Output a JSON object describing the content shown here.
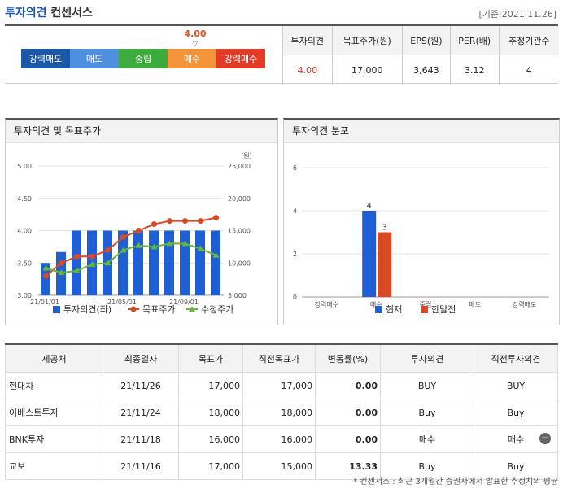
{
  "header": {
    "title_main": "투자의견",
    "title_sub": "컨센서스",
    "date": "[기준:2021.11.26]"
  },
  "scale": {
    "labels": [
      "강력매도",
      "매도",
      "중립",
      "매수",
      "강력매수"
    ],
    "colors": [
      "#1d58a6",
      "#4f8fe0",
      "#3dab3d",
      "#f5953b",
      "#e23b28"
    ],
    "marker_value": "4.00",
    "marker_arrow": "▽"
  },
  "summary": {
    "headers": [
      "투자의견",
      "목표주가(원)",
      "EPS(원)",
      "PER(배)",
      "추정기관수"
    ],
    "values": [
      "4.00",
      "17,000",
      "3,643",
      "3.12",
      "4"
    ]
  },
  "panel1": {
    "title": "투자의견 및 목표주가"
  },
  "panel2": {
    "title": "투자의견 분포"
  },
  "chart_data": [
    {
      "type": "bar",
      "title": "투자의견 및 목표주가",
      "y_unit_right": "(원)",
      "ylim_left": [
        3.0,
        5.0
      ],
      "ylim_right": [
        5000,
        25000
      ],
      "yticks_left": [
        "5.00",
        "4.50",
        "4.00",
        "3.50",
        "3.00"
      ],
      "yticks_right": [
        "25,000",
        "20,000",
        "15,000",
        "10,000",
        "5,000"
      ],
      "x_tick_labels": [
        "21/01/01",
        "21/05/01",
        "21/09/01"
      ],
      "series": [
        {
          "name": "투자의견(좌)",
          "type": "bar",
          "axis": "left",
          "color": "#1e5fd6",
          "values": [
            3.5,
            3.67,
            4,
            4,
            4,
            4,
            4,
            4,
            4,
            4,
            4,
            4
          ]
        },
        {
          "name": "목표주가",
          "type": "line",
          "axis": "right",
          "color": "#d84a24",
          "values": [
            8000,
            10000,
            11000,
            11000,
            12000,
            14000,
            15000,
            16000,
            16500,
            16500,
            16500,
            17000
          ]
        },
        {
          "name": "수정주가",
          "type": "line",
          "axis": "right",
          "color": "#67b639",
          "values": [
            9200,
            8500,
            8800,
            9800,
            10000,
            12000,
            12700,
            12500,
            13000,
            13000,
            12200,
            11200
          ]
        }
      ]
    },
    {
      "type": "bar",
      "title": "투자의견 분포",
      "ylim": [
        0,
        6
      ],
      "yticks": [
        "6",
        "4",
        "2",
        "0"
      ],
      "categories": [
        "강력매수",
        "매수",
        "중립",
        "매도",
        "강력매도"
      ],
      "series": [
        {
          "name": "현재",
          "color": "#1e5fd6",
          "values": [
            0,
            4,
            0,
            0,
            0
          ]
        },
        {
          "name": "한달전",
          "color": "#d84a24",
          "values": [
            0,
            3,
            0,
            0,
            0
          ]
        }
      ],
      "bar_labels": [
        "4",
        "3"
      ]
    }
  ],
  "broker_table": {
    "headers": [
      "제공처",
      "최종일자",
      "목표가",
      "직전목표가",
      "변동률(%)",
      "투자의견",
      "직전투자의견"
    ],
    "rows": [
      [
        "현대차",
        "21/11/26",
        "17,000",
        "17,000",
        "0.00",
        "BUY",
        "BUY"
      ],
      [
        "이베스트투자",
        "21/11/24",
        "18,000",
        "18,000",
        "0.00",
        "Buy",
        "Buy"
      ],
      [
        "BNK투자",
        "21/11/18",
        "16,000",
        "16,000",
        "0.00",
        "매수",
        "매수"
      ],
      [
        "교보",
        "21/11/16",
        "17,000",
        "15,000",
        "13.33",
        "Buy",
        "Buy"
      ]
    ],
    "collapse_icon": "minus-icon"
  },
  "footnote": "* 컨센서스 : 최근 3개월간 증권사에서 발표한 추정치의 평균"
}
